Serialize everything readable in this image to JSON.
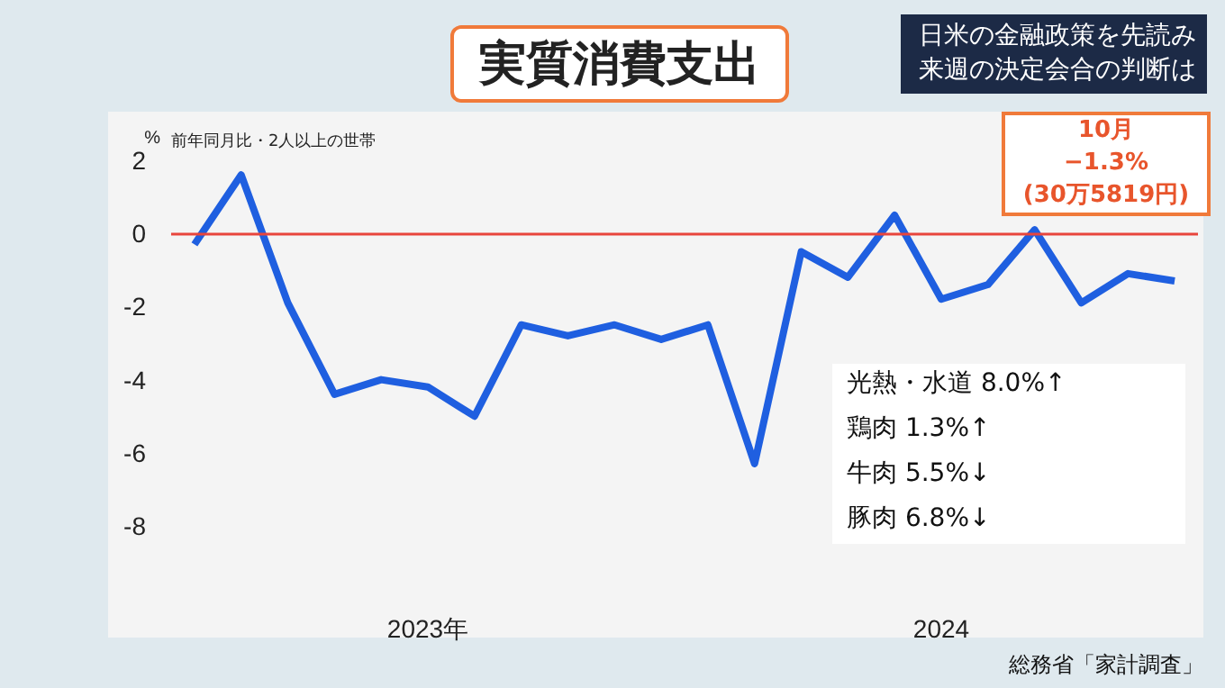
{
  "chart_data": {
    "type": "line",
    "title": "実質消費支出",
    "subtitle": "日米の金融政策を先読み来週の決定会合の判断は",
    "ylabel": "%",
    "categories": [
      null,
      null,
      null,
      null,
      null,
      "2023年",
      null,
      null,
      null,
      null,
      null,
      null,
      null,
      null,
      null,
      null,
      "2024",
      null,
      null,
      null,
      null,
      null
    ],
    "series": [
      {
        "color": "#1f5fe0",
        "values": [
          -0.3,
          1.6,
          -1.9,
          -4.4,
          -4.0,
          -4.2,
          -5.0,
          -2.5,
          -2.8,
          -2.5,
          -2.9,
          -2.5,
          -6.3,
          -0.5,
          -1.2,
          0.5,
          -1.8,
          -1.4,
          0.1,
          -1.9,
          -1.1,
          -1.3
        ]
      }
    ],
    "ylim": [
      -8,
      2
    ],
    "yticks": [
      -8,
      -6,
      -4,
      -2,
      0,
      2
    ],
    "grid": false,
    "marker": "none",
    "line_style": "solid",
    "ref_lines": [
      {
        "axis": "y",
        "value": 0,
        "color": "#e8453c"
      }
    ],
    "annotations": [
      "前年同月比・2人以上の世帯",
      "10月\n−1.3%\n(30万5819円)",
      "光熱・水道 8.0%↑",
      "鶏肉 1.3%↑",
      "牛肉 5.5%↓",
      "豚肉 6.8%↓",
      "総務省「家計調査」"
    ]
  }
}
